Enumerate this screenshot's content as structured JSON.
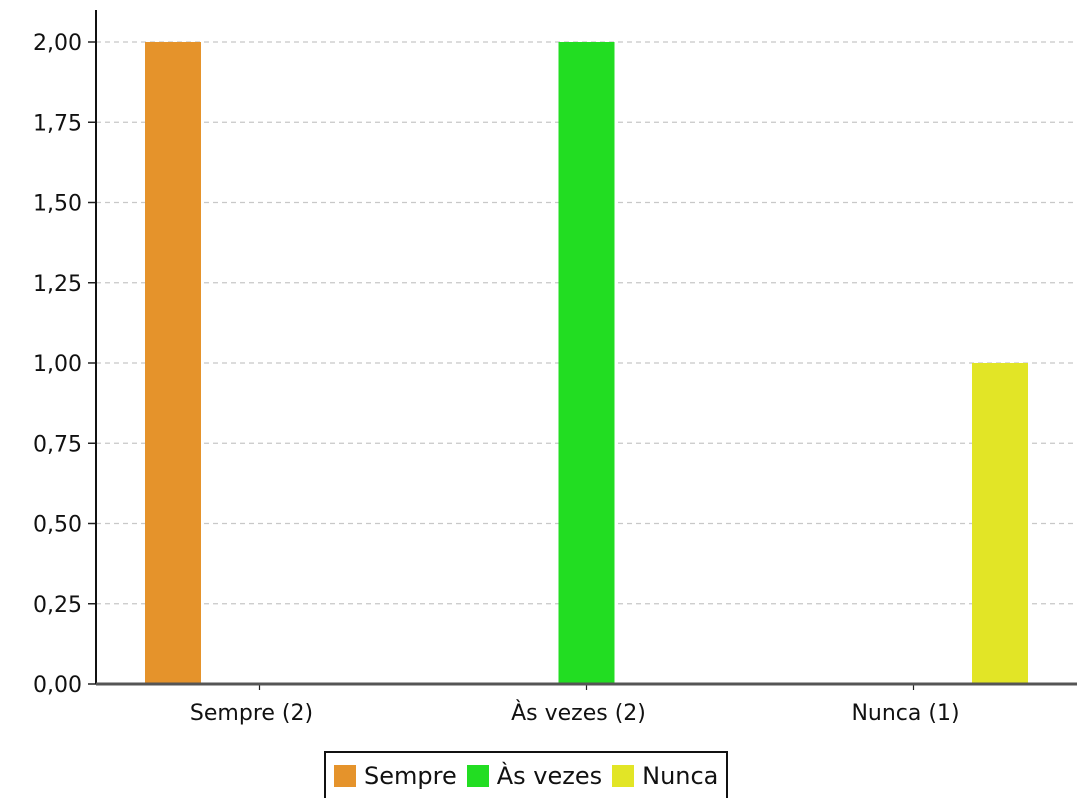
{
  "chart_data": {
    "type": "bar",
    "categories": [
      "Sempre (2)",
      "Às vezes (2)",
      "Nunca (1)"
    ],
    "series": [
      {
        "name": "Sempre",
        "values": [
          2,
          0,
          0
        ],
        "color": "#e5932b"
      },
      {
        "name": "Às vezes",
        "values": [
          0,
          2,
          0
        ],
        "color": "#22dd22"
      },
      {
        "name": "Nunca",
        "values": [
          0,
          0,
          1
        ],
        "color": "#e2e526"
      }
    ],
    "yticks": [
      "0,00",
      "0,25",
      "0,50",
      "0,75",
      "1,00",
      "1,25",
      "1,50",
      "1,75",
      "2,00"
    ],
    "ylim": [
      0,
      2
    ],
    "grid": true,
    "legend_position": "bottom-center"
  }
}
